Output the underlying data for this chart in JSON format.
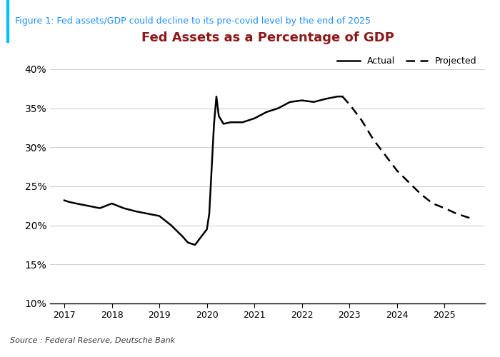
{
  "title": "Fed Assets as a Percentage of GDP",
  "figure_label": "Figure 1: Fed assets/GDP could decline to its pre-covid level by the end of 2025",
  "source_text": "Source : Federal Reserve, Deutsche Bank",
  "title_color": "#8B1A1A",
  "label_color": "#1E90FF",
  "line_color": "#000000",
  "ylim": [
    0.1,
    0.42
  ],
  "yticks": [
    0.1,
    0.15,
    0.2,
    0.25,
    0.3,
    0.35,
    0.4
  ],
  "actual_x": [
    2017.0,
    2017.1,
    2017.25,
    2017.5,
    2017.75,
    2018.0,
    2018.25,
    2018.5,
    2018.75,
    2019.0,
    2019.25,
    2019.5,
    2019.6,
    2019.75,
    2019.85,
    2019.95,
    2020.0,
    2020.05,
    2020.15,
    2020.2,
    2020.25,
    2020.35,
    2020.5,
    2020.75,
    2021.0,
    2021.25,
    2021.5,
    2021.75,
    2022.0,
    2022.25,
    2022.5,
    2022.75,
    2022.85
  ],
  "actual_y": [
    0.232,
    0.23,
    0.228,
    0.225,
    0.222,
    0.228,
    0.222,
    0.218,
    0.215,
    0.212,
    0.2,
    0.185,
    0.178,
    0.175,
    0.183,
    0.191,
    0.195,
    0.215,
    0.33,
    0.365,
    0.34,
    0.33,
    0.332,
    0.332,
    0.337,
    0.345,
    0.35,
    0.358,
    0.36,
    0.358,
    0.362,
    0.365,
    0.365
  ],
  "projected_x": [
    2022.85,
    2023.0,
    2023.25,
    2023.5,
    2023.75,
    2024.0,
    2024.25,
    2024.5,
    2024.75,
    2025.0,
    2025.25,
    2025.5,
    2025.6
  ],
  "projected_y": [
    0.365,
    0.355,
    0.335,
    0.31,
    0.29,
    0.27,
    0.255,
    0.24,
    0.228,
    0.222,
    0.215,
    0.21,
    0.208
  ],
  "border_color": "#00BFFF",
  "grid_color": "#D0D0D0",
  "background_color": "#FFFFFF",
  "title_fontsize": 13,
  "label_fontsize": 9,
  "source_fontsize": 8
}
